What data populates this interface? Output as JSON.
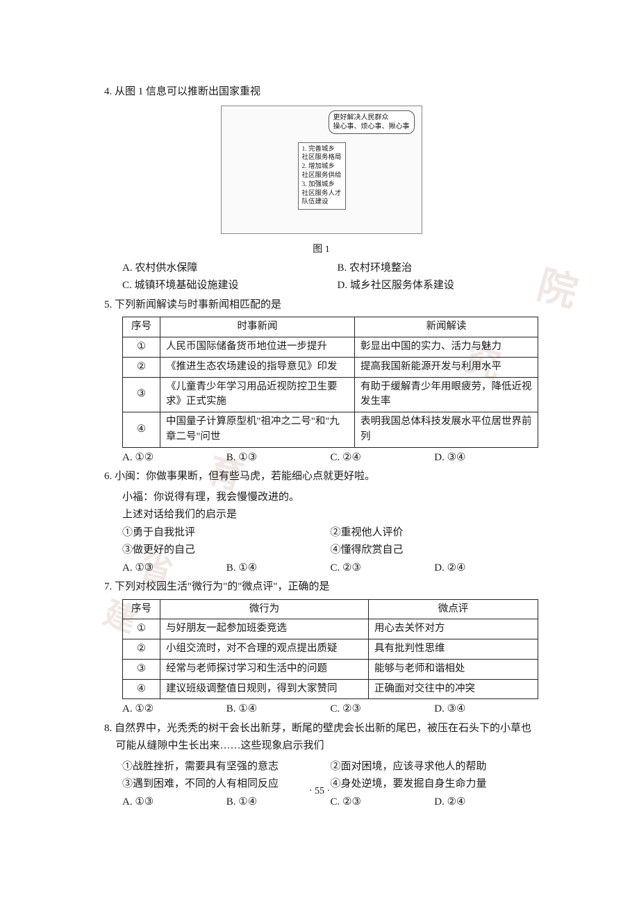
{
  "q4": {
    "stem": "4. 从图 1 信息可以推断出国家重视",
    "figure": {
      "bubble": "更好解决人民群众\n操心事、烦心事、揪心事",
      "board": "1. 完善城乡\n社区服务格局\n2. 增加城乡\n社区服务供给\n3. 加强城乡\n社区服务人才\n队伍建设",
      "caption": "图 1"
    },
    "options": {
      "A": "A. 农村供水保障",
      "B": "B. 农村环境整治",
      "C": "C. 城镇环境基础设施建设",
      "D": "D. 城乡社区服务体系建设"
    }
  },
  "q5": {
    "stem": "5. 下列新闻解读与时事新闻相匹配的是",
    "headers": [
      "序号",
      "时事新闻",
      "新闻解读"
    ],
    "rows": [
      [
        "①",
        "人民币国际储备货币地位进一步提升",
        "彰显出中国的实力、活力与魅力"
      ],
      [
        "②",
        "《推进生态农场建设的指导意见》印发",
        "提高我国新能源开发与利用水平"
      ],
      [
        "③",
        "《儿童青少年学习用品近视防控卫生要求》正式实施",
        "有助于缓解青少年用眼疲劳，降低近视发生率"
      ],
      [
        "④",
        "中国量子计算原型机\"祖冲之二号\"和\"九章二号\"问世",
        "表明我国总体科技发展水平位居世界前列"
      ]
    ],
    "options": {
      "A": "A. ①②",
      "B": "B. ①③",
      "C": "C. ②④",
      "D": "D. ③④"
    }
  },
  "q6": {
    "line1": "6. 小闽：你做事果断，但有些马虎，若能细心点就更好啦。",
    "line2": "小福：你说得有理，我会慢慢改进的。",
    "line3": "上述对话给我们的启示是",
    "items": {
      "i1": "①勇于自我批评",
      "i2": "②重视他人评价",
      "i3": "③做更好的自己",
      "i4": "④懂得欣赏自己"
    },
    "options": {
      "A": "A. ①③",
      "B": "B. ①④",
      "C": "C. ②③",
      "D": "D. ②④"
    }
  },
  "q7": {
    "stem": "7. 下列对校园生活\"微行为\"的\"微点评\"，正确的是",
    "headers": [
      "序号",
      "微行为",
      "微点评"
    ],
    "rows": [
      [
        "①",
        "与好朋友一起参加班委竞选",
        "用心去关怀对方"
      ],
      [
        "②",
        "小组交流时，对不合理的观点提出质疑",
        "具有批判性思维"
      ],
      [
        "③",
        "经常与老师探讨学习和生活中的问题",
        "能够与老师和谐相处"
      ],
      [
        "④",
        "建议班级调整值日规则，得到大家赞同",
        "正确面对交往中的冲突"
      ]
    ],
    "options": {
      "A": "A. ①②",
      "B": "B. ①④",
      "C": "C. ②③",
      "D": "D. ③④"
    }
  },
  "q8": {
    "stem": "8. 自然界中，光秃秃的树干会长出新芽，断尾的壁虎会长出新的尾巴，被压在石头下的小草也可能从缝隙中生长出来……这些现象启示我们",
    "items": {
      "i1": "①战胜挫折，需要具有坚强的意志",
      "i2": "②面对困境，应该寻求他人的帮助",
      "i3": "③遇到困难，不同的人有相同反应",
      "i4": "④身处逆境，要发掘自身生命力量"
    },
    "options": {
      "A": "A. ①③",
      "B": "B. ①④",
      "C": "C. ②③",
      "D": "D. ②④"
    }
  },
  "pageNumber": "· 55 ·"
}
